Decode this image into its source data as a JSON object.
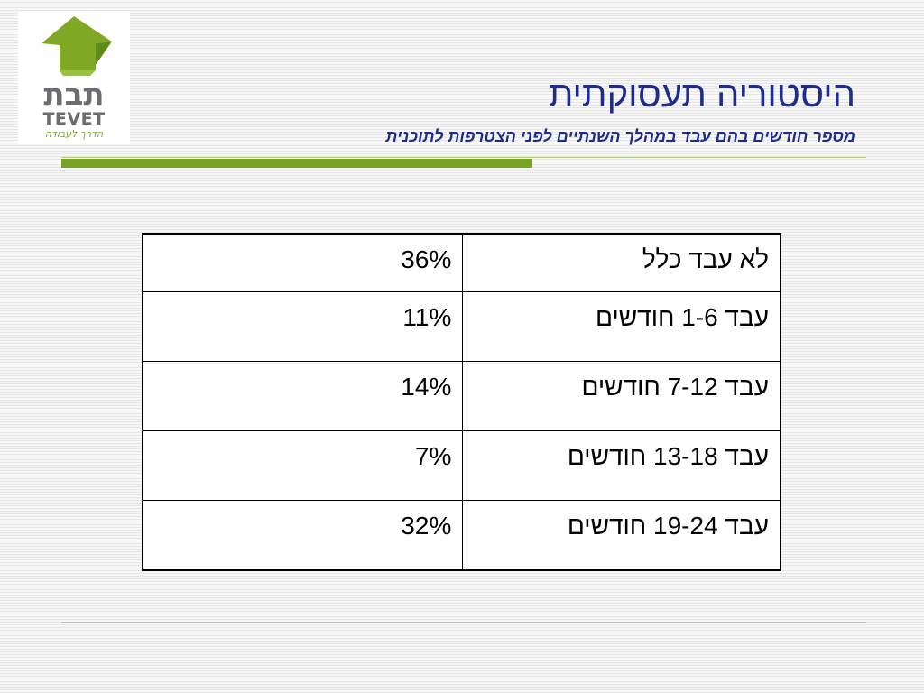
{
  "logo": {
    "hebrew": "תבת",
    "latin": "TEVET",
    "tagline": "הדרך לעבודה",
    "colors": {
      "green": "#7fa824",
      "gray": "#6b6d70"
    }
  },
  "slide": {
    "title": "היסטוריה תעסוקתית",
    "subtitle": "מספר חודשים בהם עבד במהלך השנתיים לפני הצטרפות לתוכנית",
    "accent_color": "#76a321",
    "title_color": "#1f2d8a"
  },
  "table": {
    "rows": [
      {
        "label": "לא עבד כלל",
        "value": "36%"
      },
      {
        "label": "עבד 1-6 חודשים",
        "value": "11%"
      },
      {
        "label": "עבד 7-12 חודשים",
        "value": "14%"
      },
      {
        "label": "עבד 13-18 חודשים",
        "value": "7%"
      },
      {
        "label": "עבד 19-24 חודשים",
        "value": "32%"
      }
    ]
  }
}
